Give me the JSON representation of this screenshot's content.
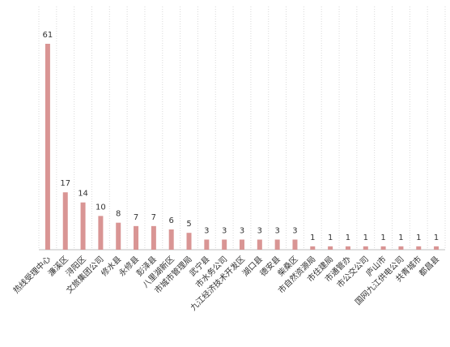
{
  "chart_data": {
    "type": "bar",
    "title": "",
    "xlabel": "",
    "ylabel": "",
    "ylim": [
      0,
      61
    ],
    "grid": "vertical-dotted",
    "bar_color": "#d99594",
    "categories": [
      "热线受理中心",
      "濂溪区",
      "浔阳区",
      "文旅集团公司",
      "修水县",
      "永修县",
      "彭泽县",
      "八里湖新区",
      "市城市管理局",
      "武宁县",
      "市水务公司",
      "九江经济技术开发区",
      "湖口县",
      "德安县",
      "柴桑区",
      "市自然资源局",
      "市住建局",
      "市通管办",
      "市公交公司",
      "庐山市",
      "国网九江供电公司",
      "共青城市",
      "都昌县"
    ],
    "values": [
      61,
      17,
      14,
      10,
      8,
      7,
      7,
      6,
      5,
      3,
      3,
      3,
      3,
      3,
      3,
      1,
      1,
      1,
      1,
      1,
      1,
      1,
      1
    ]
  }
}
